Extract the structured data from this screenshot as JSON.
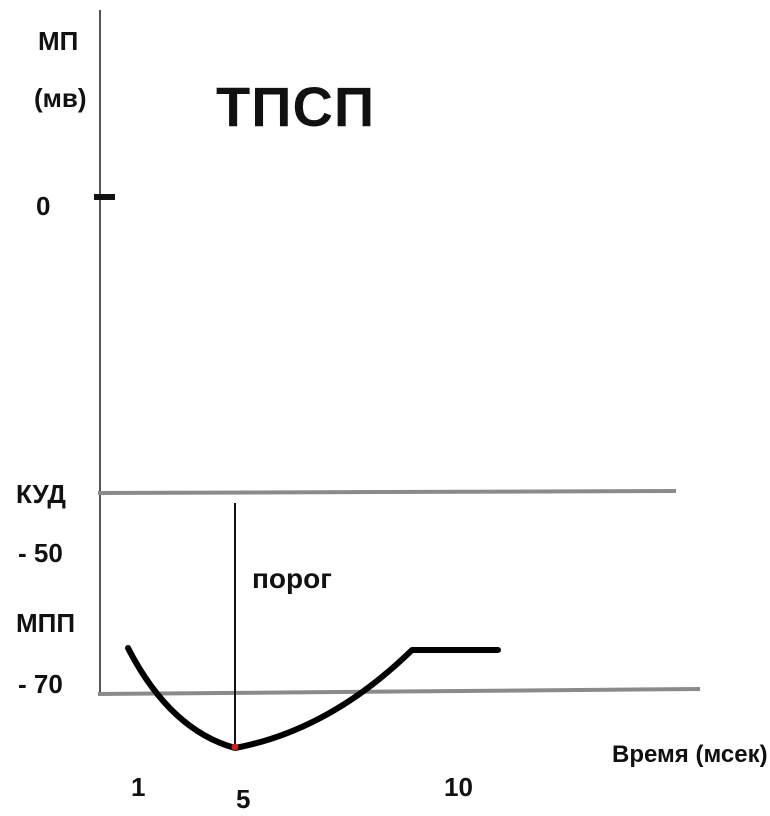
{
  "title": "ТПСП",
  "y_axis": {
    "label_top": "МП",
    "label_unit": "(мв)",
    "zero": "0",
    "threshold_name": "КУД",
    "threshold_value": "- 50",
    "rest_name": "МПП",
    "rest_value": "- 70"
  },
  "x_axis": {
    "label": "Время (мсек)",
    "ticks": [
      "1",
      "5",
      "10"
    ]
  },
  "annotation": "порог",
  "colors": {
    "curve": "#000000",
    "reference_lines": "#888888",
    "axis": "#555555",
    "peak_marker": "#cc2222"
  }
}
